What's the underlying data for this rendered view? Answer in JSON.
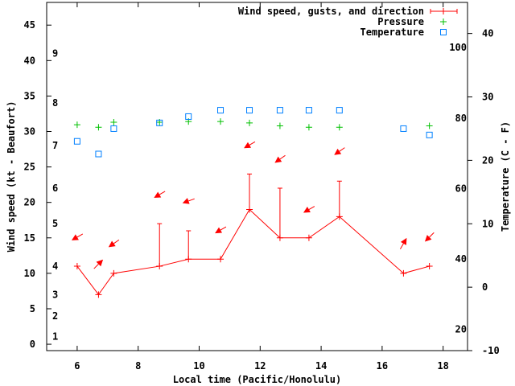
{
  "chart_data": {
    "type": "line",
    "xlabel": "Local time (Pacific/Honolulu)",
    "ylabel": "Wind speed (kt - Beaufort)",
    "y2label": "Temperature (C - F)",
    "xlim": [
      5,
      18.8
    ],
    "ylim": [
      -0.9,
      48.2
    ],
    "y2lim": [
      -10,
      44.9
    ],
    "x_ticks": [
      6,
      8,
      10,
      12,
      14,
      16,
      18
    ],
    "y_ticks": [
      0,
      5,
      10,
      15,
      20,
      25,
      30,
      35,
      40,
      45
    ],
    "y2_ticks": [
      -10,
      0,
      10,
      20,
      30,
      40
    ],
    "fahrenheit_ticks": [
      20,
      40,
      60,
      80,
      100
    ],
    "beaufort_labels": [
      {
        "label": "1",
        "kt": 1.1
      },
      {
        "label": "2",
        "kt": 4
      },
      {
        "label": "3",
        "kt": 7
      },
      {
        "label": "4",
        "kt": 11
      },
      {
        "label": "5",
        "kt": 17
      },
      {
        "label": "6",
        "kt": 22
      },
      {
        "label": "7",
        "kt": 28
      },
      {
        "label": "8",
        "kt": 34
      },
      {
        "label": "9",
        "kt": 41
      }
    ],
    "legend": {
      "position": "top-right",
      "entries": [
        "Wind speed, gusts, and direction",
        "Pressure",
        "Temperature"
      ]
    },
    "series": [
      {
        "name": "Wind speed, gusts, and direction",
        "color": "#ff0000",
        "x": [
          6.0,
          6.7,
          7.2,
          8.7,
          9.65,
          10.7,
          11.65,
          12.65,
          13.6,
          14.6,
          16.7,
          17.55
        ],
        "speed": [
          11,
          7,
          10,
          11,
          12,
          12,
          19,
          15,
          15,
          18,
          10,
          11
        ],
        "gust": [
          null,
          null,
          null,
          17,
          16,
          null,
          24,
          22,
          null,
          23,
          null,
          null
        ],
        "arrow_y": [
          15.1,
          11.3,
          14.2,
          21.1,
          20.2,
          16.1,
          28.1,
          26.1,
          19.0,
          27.2,
          14.2,
          15.1
        ],
        "arrow_bearing": [
          240,
          45,
          235,
          240,
          250,
          240,
          240,
          235,
          240,
          235,
          30,
          225
        ]
      },
      {
        "name": "Pressure",
        "color": "#00c000",
        "x": [
          6.0,
          6.7,
          7.2,
          8.7,
          9.65,
          10.7,
          11.65,
          12.65,
          13.6,
          14.6,
          17.55
        ],
        "y": [
          30.95,
          30.6,
          31.3,
          31.3,
          31.4,
          31.4,
          31.2,
          30.8,
          30.6,
          30.6,
          30.8
        ]
      },
      {
        "name": "Temperature",
        "color": "#0080ff",
        "axis": "y2",
        "x": [
          6.0,
          6.7,
          7.2,
          8.7,
          9.65,
          10.7,
          11.65,
          12.65,
          13.6,
          14.6,
          16.7,
          17.55
        ],
        "y": [
          23.0,
          21.0,
          25.0,
          25.9,
          26.9,
          27.9,
          27.9,
          27.9,
          27.9,
          27.9,
          25.0,
          24.0
        ]
      }
    ]
  }
}
